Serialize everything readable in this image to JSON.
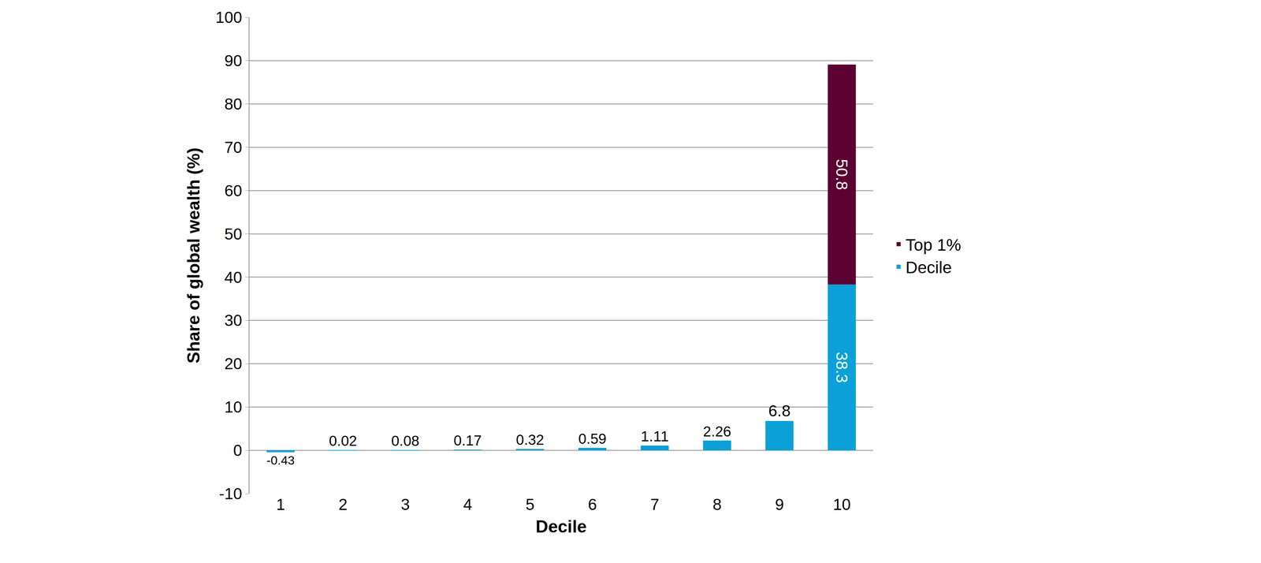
{
  "chart_data": {
    "type": "bar",
    "x_label": "Decile",
    "y_label": "Share of global wealth (%)",
    "categories": [
      1,
      2,
      3,
      4,
      5,
      6,
      7,
      8,
      9,
      10
    ],
    "series": [
      {
        "name": "Decile",
        "color": "#0ba0d8",
        "values": [
          -0.43,
          0.02,
          0.08,
          0.17,
          0.32,
          0.59,
          1.11,
          2.26,
          6.8,
          38.3
        ]
      },
      {
        "name": "Top 1%",
        "color": "#5b0031",
        "values": [
          null,
          null,
          null,
          null,
          null,
          null,
          null,
          null,
          null,
          50.8
        ]
      }
    ],
    "stacked": true,
    "data_labels": true,
    "ylim": [
      -10,
      100
    ],
    "yticks": [
      -10,
      0,
      10,
      20,
      30,
      40,
      50,
      60,
      70,
      80,
      90,
      100
    ],
    "grid": true,
    "legend": "right"
  }
}
